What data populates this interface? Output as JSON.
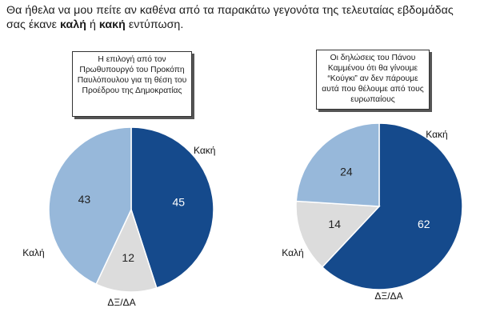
{
  "question": {
    "part1": "Θα ήθελα να μου πείτε αν καθένα από τα παρακάτω γεγονότα της τελευταίας εβδομάδας",
    "part2": "σας έκανε ",
    "good": "καλή",
    "or": " ή ",
    "bad": "κακή",
    "part3": " εντύπωση."
  },
  "colors": {
    "bad": "#154a8c",
    "good": "#97b8da",
    "dk": "#dcdcdc"
  },
  "chart_data": [
    {
      "type": "pie",
      "title": "Η επιλογή από τον Πρωθυπουργό του Προκόπη Παυλόπουλου για τη θέση του Προέδρου της Δημοκρατίας",
      "slices": [
        {
          "label": "Κακή",
          "value": 45
        },
        {
          "label": "ΔΞ/ΔΑ",
          "value": 12
        },
        {
          "label": "Καλή",
          "value": 43
        }
      ]
    },
    {
      "type": "pie",
      "title": "Οι δηλώσεις του Πάνου Καμμένου ότι θα γίνουμε “Κούγκι” αν δεν πάρουμε αυτά που θέλουμε από τους ευρωπαίους",
      "slices": [
        {
          "label": "Κακή",
          "value": 62
        },
        {
          "label": "ΔΞ/ΔΑ",
          "value": 14
        },
        {
          "label": "Καλή",
          "value": 24
        }
      ]
    }
  ]
}
